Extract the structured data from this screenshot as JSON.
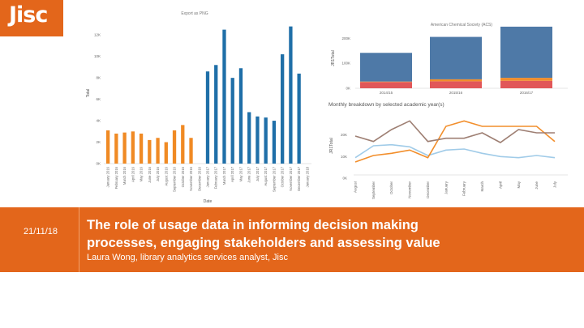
{
  "logo": {
    "text": "Jisc",
    "color": "#e3661b"
  },
  "slide": {
    "date": "21/11/18",
    "title_line1": "The role of usage data in informing decision making",
    "title_line2": "processes, engaging stakeholders and assessing value",
    "subtitle": "Laura Wong, library analytics services analyst, Jisc",
    "accent_color": "#e3661b"
  },
  "chart_data": [
    {
      "type": "bar",
      "title": "Export as PNG",
      "xlabel": "Date",
      "ylabel": "Total",
      "yticks": [
        "0K",
        "2K",
        "4K",
        "6K",
        "8K",
        "10K",
        "12K"
      ],
      "ylim": [
        0,
        13000
      ],
      "categories": [
        "January 2016",
        "February 2016",
        "March 2016",
        "April 2016",
        "May 2016",
        "June 2016",
        "July 2016",
        "August 2016",
        "September 2016",
        "October 2016",
        "November 2016",
        "December 2016",
        "January 2017",
        "February 2017",
        "March 2017",
        "April 2017",
        "May 2017",
        "June 2017",
        "July 2017",
        "August 2017",
        "September 2017",
        "October 2017",
        "November 2017",
        "December 2017",
        "January 2018"
      ],
      "values": [
        3100,
        2800,
        2900,
        3000,
        2800,
        2200,
        2400,
        2000,
        3100,
        3600,
        2400,
        null,
        8600,
        9200,
        12500,
        8000,
        8900,
        4800,
        4400,
        4300,
        4000,
        10200,
        12800,
        8400,
        null
      ],
      "colors": [
        "#f08a24",
        "#f08a24",
        "#f08a24",
        "#f08a24",
        "#f08a24",
        "#f08a24",
        "#f08a24",
        "#f08a24",
        "#f08a24",
        "#f08a24",
        "#f08a24",
        "#f08a24",
        "#1f6fa8",
        "#1f6fa8",
        "#1f6fa8",
        "#1f6fa8",
        "#1f6fa8",
        "#1f6fa8",
        "#1f6fa8",
        "#1f6fa8",
        "#1f6fa8",
        "#1f6fa8",
        "#1f6fa8",
        "#1f6fa8",
        "#1f6fa8"
      ]
    },
    {
      "type": "bar",
      "stacked": true,
      "title": "American Chemical Society (ACS)",
      "ylabel": "JR1Total",
      "yticks": [
        "0K",
        "100K",
        "200K"
      ],
      "ylim": [
        0,
        250000
      ],
      "categories": [
        "2014/15",
        "2015/16",
        "2016/17"
      ],
      "series": [
        {
          "color": "#e15759",
          "values": [
            25000,
            28000,
            30000
          ]
        },
        {
          "color": "#f28e2b",
          "values": [
            2000,
            8000,
            12000
          ]
        },
        {
          "color": "#4e79a7",
          "values": [
            115000,
            170000,
            205000
          ]
        }
      ]
    },
    {
      "type": "line",
      "title": "Monthly breakdown by selected academic year(s)",
      "ylabel": "JR1Total",
      "yticks": [
        "0K",
        "10K",
        "20K"
      ],
      "ylim": [
        0,
        30000
      ],
      "categories": [
        "August",
        "September",
        "October",
        "November",
        "December",
        "January",
        "February",
        "March",
        "April",
        "May",
        "June",
        "July"
      ],
      "series": [
        {
          "color": "#a0cbe8",
          "values": [
            9500,
            15000,
            15500,
            14500,
            10500,
            13000,
            13500,
            11500,
            10000,
            9500,
            10500,
            9500
          ]
        },
        {
          "color": "#f28e2b",
          "values": [
            7500,
            10500,
            11500,
            13000,
            9500,
            24000,
            26500,
            24000,
            24000,
            24000,
            24000,
            17000
          ]
        },
        {
          "color": "#9e7f73",
          "values": [
            19500,
            17000,
            22500,
            26500,
            17000,
            18500,
            18500,
            21000,
            16500,
            22500,
            21000,
            21000
          ]
        }
      ]
    }
  ]
}
